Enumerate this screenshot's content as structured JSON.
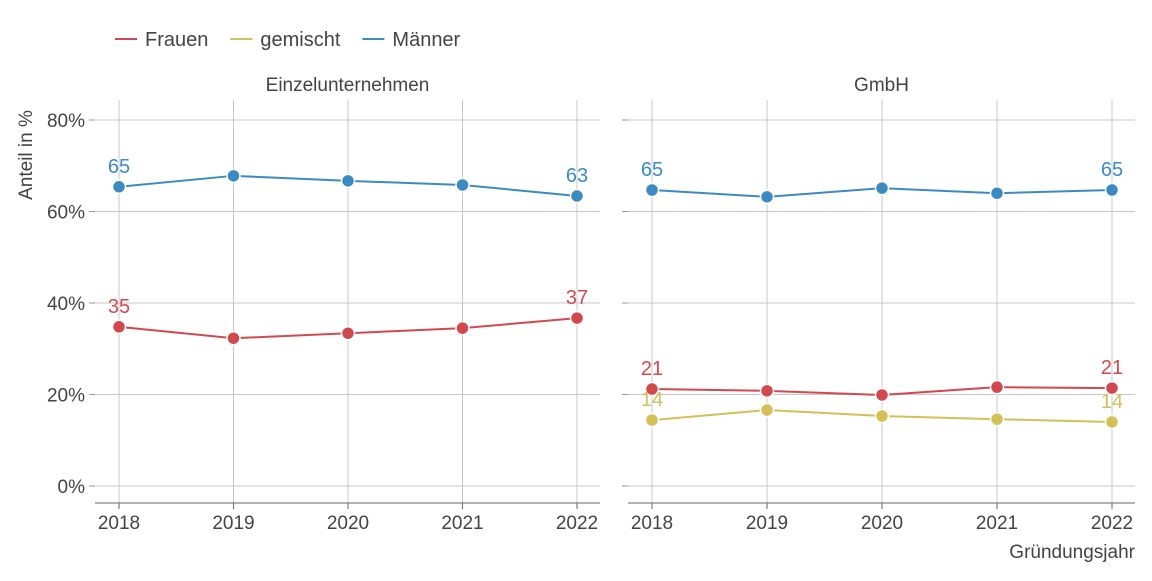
{
  "chart_data": [
    {
      "type": "line",
      "title": "Einzelunternehmen",
      "x": [
        2018,
        2019,
        2020,
        2021,
        2022
      ],
      "series": [
        {
          "name": "Frauen",
          "values": [
            34.8,
            32.3,
            33.4,
            34.5,
            36.7
          ],
          "labels": [
            "35",
            "37"
          ]
        },
        {
          "name": "Männer",
          "values": [
            65.4,
            67.8,
            66.7,
            65.8,
            63.4
          ],
          "labels": [
            "65",
            "63"
          ]
        }
      ]
    },
    {
      "type": "line",
      "title": "GmbH",
      "x": [
        2018,
        2019,
        2020,
        2021,
        2022
      ],
      "series": [
        {
          "name": "Frauen",
          "values": [
            21.2,
            20.8,
            19.9,
            21.6,
            21.4
          ],
          "labels": [
            "21",
            "21"
          ]
        },
        {
          "name": "gemischt",
          "values": [
            14.4,
            16.6,
            15.3,
            14.6,
            14.0
          ],
          "labels": [
            "14",
            "14"
          ]
        },
        {
          "name": "Männer",
          "values": [
            64.7,
            63.2,
            65.1,
            64.0,
            64.7
          ],
          "labels": [
            "65",
            "65"
          ]
        }
      ]
    }
  ],
  "axes": {
    "ylabel": "Anteil in %",
    "xlabel": "Gründungsjahr",
    "ylim": [
      0,
      80
    ],
    "yticks": [
      "0%",
      "20%",
      "40%",
      "60%",
      "80%"
    ],
    "xticks": [
      "2018",
      "2019",
      "2020",
      "2021",
      "2022"
    ],
    "grid": true
  },
  "legend": {
    "placement": "top-left",
    "items": [
      {
        "name": "Frauen",
        "color": "#d1494e"
      },
      {
        "name": "gemischt",
        "color": "#d4c058"
      },
      {
        "name": "Männer",
        "color": "#3b8bc2"
      }
    ]
  }
}
